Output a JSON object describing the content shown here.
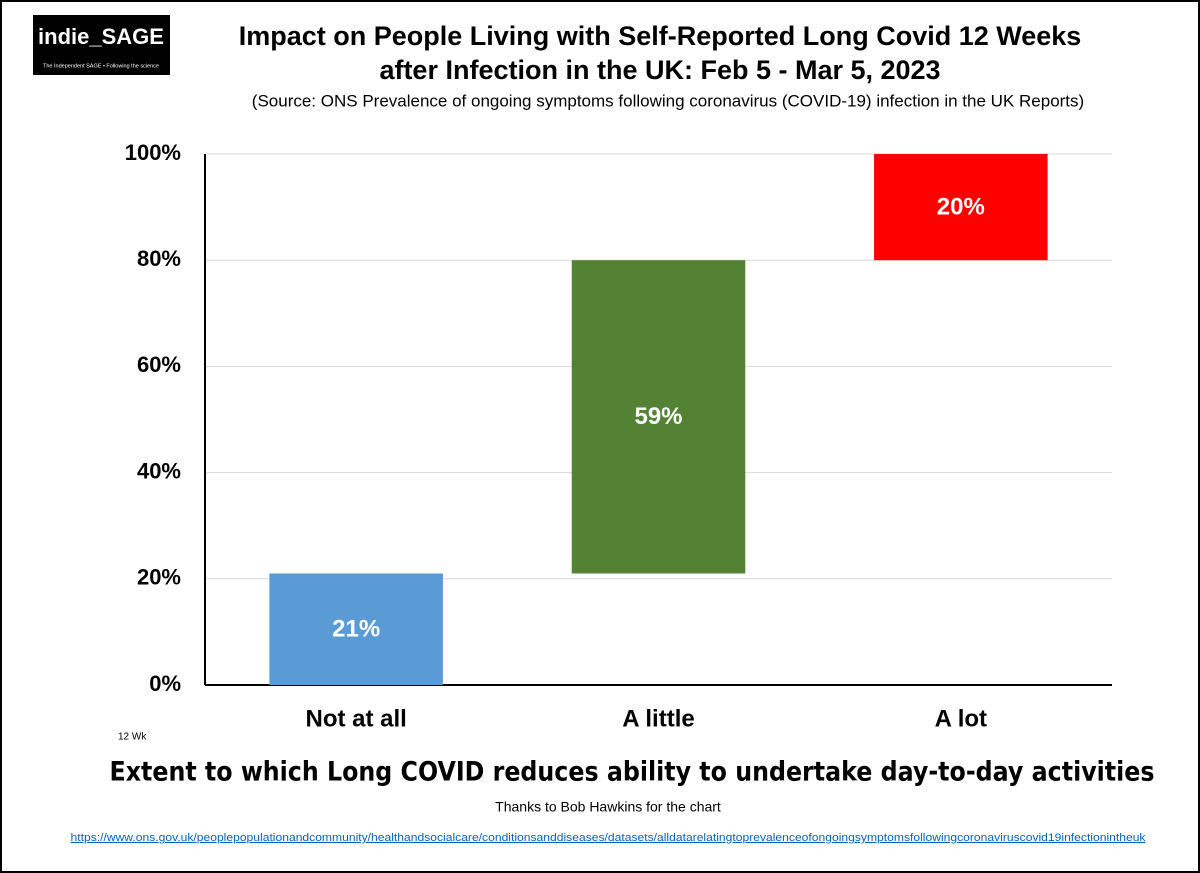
{
  "logo": {
    "name": "indie_SAGE",
    "tagline": "The Independent SAGE • Following the science"
  },
  "chart_data": {
    "type": "waterfall",
    "title": [
      "Impact on People Living with Self-Reported Long Covid 12 Weeks",
      "after Infection in the UK: Feb 5 - Mar 5, 2023"
    ],
    "subtitle": "(Source: ONS Prevalence of ongoing symptoms following coronavirus (COVID-19) infection in the UK Reports)",
    "categories": [
      "Not at all",
      "A little",
      "A lot"
    ],
    "values": [
      21,
      59,
      20
    ],
    "value_labels": [
      "21%",
      "59%",
      "20%"
    ],
    "colors": [
      "#5b9bd5",
      "#548235",
      "#ff0000"
    ],
    "ylim": [
      0,
      100
    ],
    "yticks": [
      {
        "value": 0,
        "label": "0%"
      },
      {
        "value": 20,
        "label": "20%"
      },
      {
        "value": 40,
        "label": "40%"
      },
      {
        "value": 60,
        "label": "60%"
      },
      {
        "value": 80,
        "label": "80%"
      },
      {
        "value": 100,
        "label": "100%"
      }
    ],
    "grid": true,
    "annotation": "12 Wk",
    "xlabel": "Extent to which Long COVID reduces ability to undertake day-to-day activities"
  },
  "footer": {
    "credit": "Thanks to Bob Hawkins for the chart",
    "url": "https://www.ons.gov.uk/peoplepopulationandcommunity/healthandsocialcare/conditionsanddiseases/datasets/alldatarelatingtoprevalenceofongoingsymptomsfollowingcoronaviruscovid19infectionintheuk"
  }
}
